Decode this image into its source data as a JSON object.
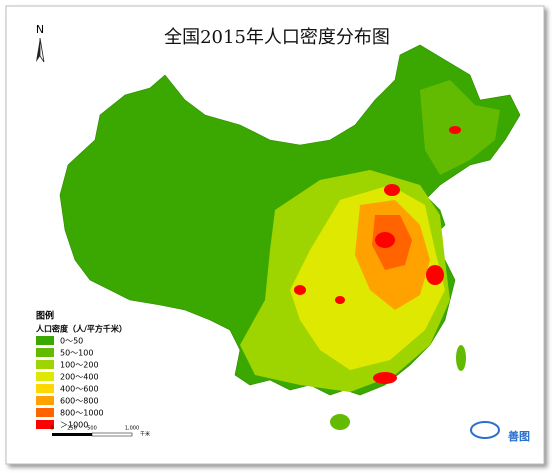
{
  "title": "全国2015年人口密度分布图",
  "north_arrow": "N",
  "legend": {
    "title": "图例",
    "subtitle": "人口密度（人/平方千米）",
    "items": [
      {
        "label": "0～50",
        "color": "#3aa800"
      },
      {
        "label": "50～100",
        "color": "#62bb00"
      },
      {
        "label": "100～200",
        "color": "#9ed400"
      },
      {
        "label": "200～400",
        "color": "#dfe800"
      },
      {
        "label": "400～600",
        "color": "#ffd800"
      },
      {
        "label": "600～800",
        "color": "#ffa200"
      },
      {
        "label": "800～1000",
        "color": "#ff6400"
      },
      {
        "label": "＞1000",
        "color": "#ff0000"
      }
    ]
  },
  "scale_bar": {
    "labels": [
      "0",
      "250",
      "500",
      "1,000"
    ],
    "unit": "千米"
  },
  "logo": "善图"
}
